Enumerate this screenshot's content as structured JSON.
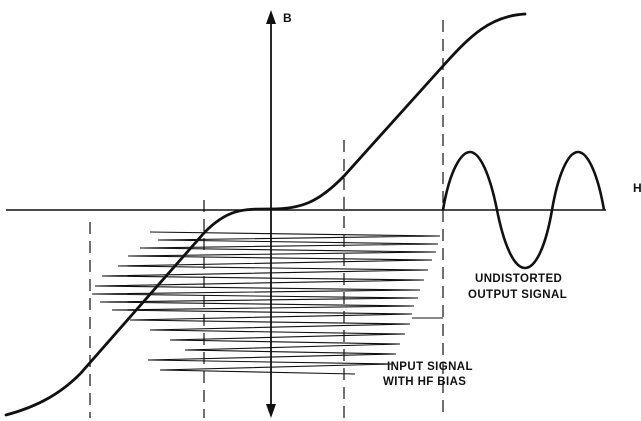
{
  "axes": {
    "y_label": "B",
    "x_label": "H"
  },
  "annotations": {
    "output_signal": [
      "UNDISTORTED",
      "OUTPUT SIGNAL"
    ],
    "input_signal": [
      "INPUT SIGNAL",
      "WITH  HF BIAS"
    ]
  },
  "colors": {
    "ink": "#111111",
    "background": "#ffffff"
  }
}
